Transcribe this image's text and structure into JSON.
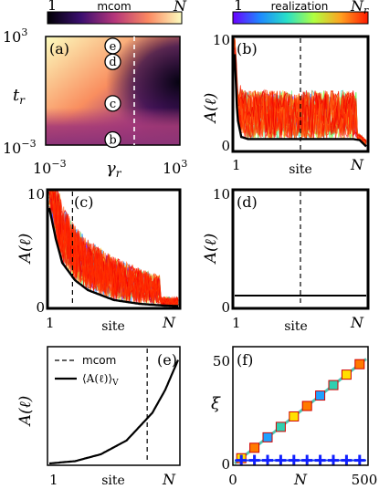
{
  "colorbar_mcom": {
    "left": "1",
    "label": "mcom",
    "right": "N"
  },
  "colorbar_realization": {
    "left": "1",
    "label": "realization",
    "right": "N",
    "right_sub": "r"
  },
  "chart_data": [
    {
      "panel": "(a)",
      "type": "heatmap",
      "xlabel": "γ",
      "xlabel_sub": "r",
      "ylabel": "t",
      "ylabel_sub": "r",
      "x_ticks": [
        {
          "base": "10",
          "exp": "−3"
        },
        {
          "base": "10",
          "exp": "3"
        }
      ],
      "y_ticks": [
        {
          "base": "10",
          "exp": "3"
        },
        {
          "base": "10",
          "exp": "−3"
        }
      ],
      "x_scale": "log",
      "y_scale": "log",
      "points": [
        {
          "label": "e",
          "x": 1,
          "y": 300
        },
        {
          "label": "d",
          "x": 1,
          "y": 40
        },
        {
          "label": "c",
          "x": 1,
          "y": 0.2
        },
        {
          "label": "b",
          "x": 1,
          "y": 0.002
        }
      ]
    },
    {
      "panel": "(b)",
      "type": "line",
      "ylabel": "A(ℓ)",
      "xlabel": "site",
      "x_ticks": [
        "1",
        "N"
      ],
      "y_ticks": [
        "0",
        "5",
        "10"
      ],
      "ylim": [
        0,
        10
      ],
      "mcom_marker": 0.5,
      "mean_curve": {
        "x": [
          0,
          0.02,
          0.05,
          0.1,
          0.3,
          0.5,
          0.7,
          0.9,
          0.95,
          1
        ],
        "y": [
          9,
          3,
          1.2,
          1,
          1,
          1,
          1,
          1,
          0.9,
          0.3
        ]
      }
    },
    {
      "panel": "(c)",
      "type": "line",
      "ylabel": "A(ℓ)",
      "xlabel": "site",
      "x_ticks": [
        "1",
        "N"
      ],
      "y_ticks": [
        "0",
        "5",
        "10"
      ],
      "ylim": [
        0,
        10
      ],
      "mcom_marker": 0.18,
      "mean_curve": {
        "x": [
          0,
          0.05,
          0.1,
          0.2,
          0.3,
          0.5,
          0.7,
          0.9,
          1
        ],
        "y": [
          9,
          6.2,
          4,
          2.4,
          1.5,
          0.6,
          0.25,
          0.08,
          0.05
        ]
      }
    },
    {
      "panel": "(d)",
      "type": "line",
      "ylabel": "A(ℓ)",
      "xlabel": "site",
      "x_ticks": [
        "1",
        "N"
      ],
      "y_ticks": [
        "0",
        "5",
        "10"
      ],
      "ylim": [
        0,
        10
      ],
      "mcom_marker": 0.5,
      "mean_curve": {
        "x": [
          0,
          1
        ],
        "y": [
          1,
          1
        ]
      }
    },
    {
      "panel": "(e)",
      "type": "line",
      "ylabel": "A(ℓ)",
      "xlabel": "site",
      "x_ticks": [
        "1",
        "N"
      ],
      "mcom_marker": 0.76,
      "legend": [
        {
          "style": "dashed",
          "label": "mcom"
        },
        {
          "style": "solid",
          "label": "⟨A(ℓ)⟩",
          "sub": "V"
        }
      ],
      "mean_curve": {
        "x": [
          0,
          0.2,
          0.4,
          0.6,
          0.8,
          0.9,
          1
        ],
        "y": [
          0.0,
          0.01,
          0.04,
          0.1,
          0.22,
          0.32,
          0.45
        ]
      }
    },
    {
      "panel": "(f)",
      "type": "scatter",
      "ylabel": "ξ",
      "xlabel": "N",
      "x_ticks": [
        "0",
        "500"
      ],
      "y_ticks": [
        "0",
        "50"
      ],
      "xlim": [
        0,
        500
      ],
      "ylim": [
        0,
        55
      ],
      "series": [
        {
          "marker": "square",
          "x": [
            25,
            75,
            125,
            175,
            225,
            275,
            325,
            375,
            425,
            475
          ],
          "y": [
            2.5,
            7.5,
            12.5,
            17.5,
            22.5,
            27.5,
            32.5,
            37.5,
            42.5,
            47.5
          ]
        },
        {
          "marker": "plus",
          "x": [
            25,
            75,
            125,
            175,
            225,
            275,
            325,
            375,
            425,
            475
          ],
          "y": [
            1.5,
            1.5,
            1.5,
            1.5,
            1.5,
            1.5,
            1.5,
            1.5,
            1.5,
            1.5
          ]
        }
      ]
    }
  ]
}
